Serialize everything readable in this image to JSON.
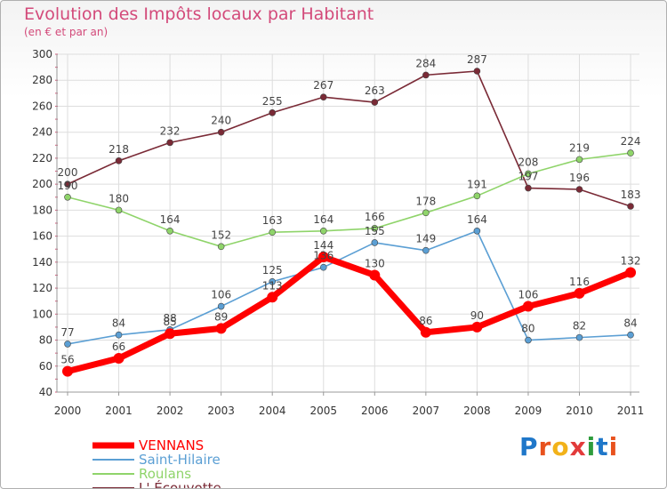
{
  "title": "Evolution des Impôts locaux par Habitant",
  "subtitle": "(en € et par an)",
  "logo": "Proxiti",
  "chart_data": {
    "type": "line",
    "x": [
      "2000",
      "2001",
      "2002",
      "2003",
      "2004",
      "2005",
      "2006",
      "2007",
      "2008",
      "2009",
      "2010",
      "2011"
    ],
    "ylim": [
      40,
      300
    ],
    "yticks": [
      40,
      60,
      80,
      100,
      120,
      140,
      160,
      180,
      200,
      220,
      240,
      260,
      280,
      300
    ],
    "grid": true,
    "legend_position": "bottom-left",
    "series": [
      {
        "name": "VENNANS",
        "color": "#ff0000",
        "values": [
          56,
          66,
          85,
          89,
          113,
          144,
          130,
          86,
          90,
          106,
          116,
          132
        ]
      },
      {
        "name": "Saint-Hilaire",
        "color": "#5b9fd4",
        "values": [
          77,
          84,
          88,
          106,
          125,
          136,
          155,
          149,
          164,
          80,
          82,
          84
        ]
      },
      {
        "name": "Roulans",
        "color": "#8fd46a",
        "values": [
          190,
          180,
          164,
          152,
          163,
          164,
          166,
          178,
          191,
          208,
          219,
          224
        ]
      },
      {
        "name": "L' Écouvotte",
        "color": "#7a2a36",
        "values": [
          200,
          218,
          232,
          240,
          255,
          267,
          263,
          284,
          287,
          197,
          196,
          183
        ]
      }
    ],
    "value_labels": {
      "VENNANS": [
        "56",
        "66",
        "85",
        "89",
        "113",
        "144",
        "130",
        "86",
        "90",
        "106",
        "116",
        "132"
      ],
      "Saint-Hilaire": [
        "77",
        "84",
        "88",
        "106",
        "125",
        "136",
        "155",
        "149",
        "164",
        "80",
        "82",
        "84"
      ],
      "Roulans": [
        "190",
        "180",
        "164",
        "152",
        "163",
        "164",
        "166",
        "178",
        "191",
        "208",
        "219",
        "224"
      ],
      "L' Écouvotte": [
        "200",
        "218",
        "232",
        "240",
        "255",
        "267",
        "263",
        "284",
        "287",
        "197",
        "196",
        "183"
      ]
    }
  }
}
